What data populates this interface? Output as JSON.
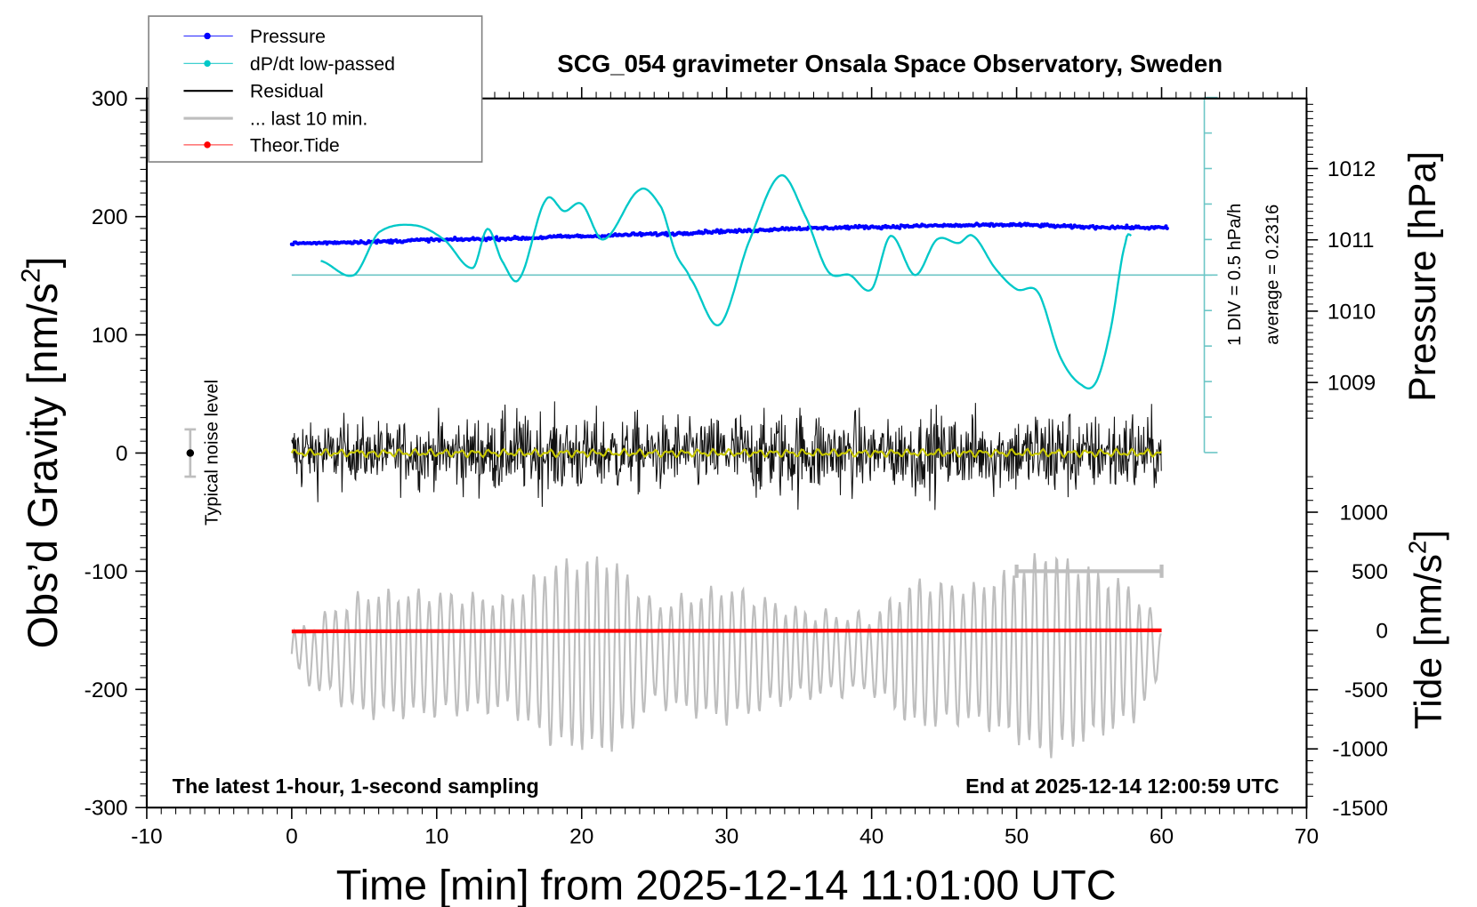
{
  "chart_data": {
    "type": "line",
    "title": "SCG_054 gravimeter Onsala Space Observatory, Sweden",
    "xlabel": "Time [min] from 2025-12-14 11:01:00 UTC",
    "ylabel_left": "Obs’d Gravity [nm/s",
    "ylabel_left_sup": "2",
    "ylabel_left_end": "]",
    "ylabel_right_pressure": "Pressure [hPa]",
    "ylabel_right_tide": "Tide [nm/s",
    "ylabel_right_tide_sup": "2",
    "ylabel_right_tide_end": "]",
    "xlim": [
      -10,
      70
    ],
    "ylim_left": [
      -300,
      300
    ],
    "x_ticks": [
      "-10",
      "0",
      "10",
      "20",
      "30",
      "40",
      "50",
      "60",
      "70"
    ],
    "y_ticks_left": [
      "-300",
      "-200",
      "-100",
      "0",
      "100",
      "200",
      "300"
    ],
    "y_ticks_pressure": [
      "1009",
      "1010",
      "1011",
      "1012"
    ],
    "y_ticks_tide": [
      "-1500",
      "-1000",
      "-500",
      "0",
      "500",
      "1000"
    ],
    "grid": false,
    "legend_position": "top-left",
    "legend": [
      {
        "label": "Pressure",
        "color": "#0000ff",
        "marker": "dot"
      },
      {
        "label": "dP/dt low-passed",
        "color": "#00c8c8",
        "marker": "dot"
      },
      {
        "label": "Residual",
        "color": "#000000",
        "marker": "line"
      },
      {
        "label": "... last 10 min.",
        "color": "#bebebe",
        "marker": "line"
      },
      {
        "label": "Theor.Tide",
        "color": "#ff0000",
        "marker": "dot"
      }
    ],
    "annotations": {
      "footer_left": "The latest 1-hour, 1-second sampling",
      "footer_right": "End at 2025-12-14 12:00:59 UTC",
      "scale_div": "1 DIV = 0.5 hPa/h",
      "scale_avg": "average = 0.2316",
      "noise_label": "Typical noise level"
    },
    "noise_level": {
      "x": -7,
      "center": 0,
      "halfwidth": 20
    },
    "last10_bar": {
      "x_start": 50,
      "x_end": 60,
      "y": -100
    },
    "series": [
      {
        "name": "Pressure",
        "unit": "hPa",
        "color": "#0000ff",
        "x": [
          0,
          5,
          10,
          15,
          20,
          25,
          30,
          35,
          40,
          45,
          50,
          55,
          60
        ],
        "values": [
          1010.95,
          1010.97,
          1011.0,
          1011.02,
          1011.05,
          1011.08,
          1011.12,
          1011.16,
          1011.18,
          1011.2,
          1011.21,
          1011.18,
          1011.17
        ]
      },
      {
        "name": "dP/dt low-passed",
        "unit": "DIV",
        "color": "#00c8c8",
        "baseline_div": 5,
        "x": [
          2,
          4.3,
          6,
          8.5,
          10.5,
          12.5,
          13.5,
          14.5,
          15.7,
          17.5,
          18.8,
          20,
          21.5,
          24,
          25.5,
          26.5,
          27.5,
          29.5,
          31.5,
          33.7,
          35.5,
          37,
          38.5,
          40,
          41.3,
          43,
          44.5,
          46,
          47,
          48.5,
          50,
          51.5,
          53,
          54.5,
          55.5,
          56.5,
          57.5,
          58
        ],
        "values": [
          5.4,
          5.0,
          6.2,
          6.4,
          6.0,
          5.2,
          6.3,
          5.4,
          4.9,
          7.1,
          6.8,
          7.0,
          6.0,
          7.4,
          6.9,
          5.6,
          4.9,
          3.6,
          5.9,
          7.8,
          6.6,
          5.1,
          5.0,
          4.6,
          6.1,
          5.0,
          6.0,
          5.9,
          6.1,
          5.2,
          4.6,
          4.5,
          2.7,
          1.9,
          2.0,
          3.5,
          5.9,
          6.1
        ]
      },
      {
        "name": "Residual",
        "unit": "nm/s2",
        "color": "#000000",
        "x_range": [
          0,
          60
        ],
        "amplitude_envelope": {
          "x": [
            0,
            5,
            10,
            15,
            20,
            25,
            30,
            35,
            40,
            45,
            50,
            53,
            55,
            58,
            60
          ],
          "values": [
            70,
            55,
            60,
            75,
            70,
            65,
            70,
            80,
            65,
            75,
            70,
            95,
            60,
            85,
            50
          ]
        }
      },
      {
        "name": "Residual low-passed",
        "unit": "nm/s2",
        "color": "#c8c800",
        "x_range": [
          0,
          60
        ],
        "values_mean": 0
      },
      {
        "name": "... last 10 min.",
        "unit": "nm/s2",
        "color": "#bebebe",
        "x_range": [
          0,
          60
        ],
        "offset": -170,
        "amplitude_envelope": {
          "x": [
            0,
            2,
            5,
            10,
            15,
            18,
            22,
            25,
            30,
            35,
            40,
            43,
            47,
            50,
            52,
            55,
            58,
            60
          ],
          "values": [
            15,
            30,
            50,
            50,
            45,
            75,
            80,
            40,
            55,
            35,
            30,
            60,
            55,
            70,
            85,
            70,
            55,
            20
          ]
        }
      },
      {
        "name": "Theor.Tide",
        "unit": "nm/s2",
        "color": "#ff0000",
        "x": [
          0,
          2,
          60
        ],
        "values": [
          -8,
          -6,
          2
        ]
      }
    ]
  }
}
